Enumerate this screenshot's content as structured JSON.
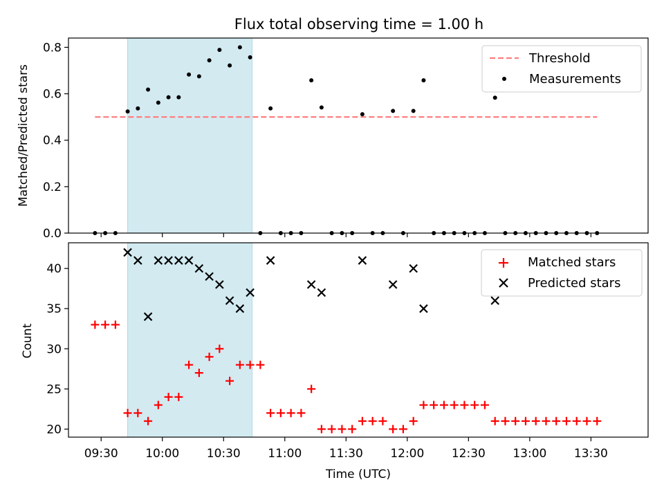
{
  "title": "Flux total observing time = 1.00 h",
  "chart_data": [
    {
      "type": "scatter",
      "panel": "top",
      "ylabel": "Matched/Predicted stars",
      "ylim": [
        0,
        0.84
      ],
      "yticks": [
        0.0,
        0.2,
        0.4,
        0.6,
        0.8
      ],
      "ytick_labels": [
        "0.0",
        "0.2",
        "0.4",
        "0.6",
        "0.8"
      ],
      "xlim": [
        "09:14",
        "13:58"
      ],
      "highlight_span": [
        "09:43",
        "10:44"
      ],
      "highlight_color": "#d3eaf1",
      "legend_position": "upper right",
      "series": [
        {
          "name": "Threshold",
          "kind": "dashed-line",
          "color": "#ff7f7f",
          "x": [
            "09:27",
            "13:33"
          ],
          "y": [
            0.5,
            0.5
          ]
        },
        {
          "name": "Measurements",
          "kind": "points",
          "color": "#000000",
          "x": [
            "09:27",
            "09:32",
            "09:37",
            "09:43",
            "09:48",
            "09:53",
            "09:58",
            "10:03",
            "10:08",
            "10:13",
            "10:18",
            "10:23",
            "10:28",
            "10:33",
            "10:38",
            "10:43",
            "10:48",
            "10:53",
            "10:58",
            "11:03",
            "11:08",
            "11:13",
            "11:18",
            "11:23",
            "11:28",
            "11:33",
            "11:38",
            "11:43",
            "11:48",
            "11:53",
            "11:58",
            "12:03",
            "12:08",
            "12:13",
            "12:18",
            "12:23",
            "12:28",
            "12:33",
            "12:38",
            "12:43",
            "12:48",
            "12:53",
            "12:58",
            "13:03",
            "13:08",
            "13:13",
            "13:18",
            "13:23",
            "13:28",
            "13:33"
          ],
          "y": [
            0,
            0,
            0,
            0.524,
            0.537,
            0.618,
            0.562,
            0.585,
            0.585,
            0.683,
            0.675,
            0.744,
            0.789,
            0.722,
            0.8,
            0.757,
            0,
            0.537,
            0,
            0,
            0,
            0.658,
            0.541,
            0,
            0,
            0,
            0.512,
            0,
            0,
            0.526,
            0,
            0.526,
            0.658,
            0,
            0,
            0,
            0,
            0,
            0,
            0.583,
            0,
            0,
            0,
            0,
            0,
            0,
            0,
            0,
            0,
            0
          ]
        }
      ]
    },
    {
      "type": "scatter",
      "panel": "bottom",
      "xlabel": "Time (UTC)",
      "ylabel": "Count",
      "ylim": [
        19,
        43.2
      ],
      "yticks": [
        20,
        25,
        30,
        35,
        40
      ],
      "ytick_labels": [
        "20",
        "25",
        "30",
        "35",
        "40"
      ],
      "xlim": [
        "09:14",
        "13:58"
      ],
      "xticks": [
        "09:30",
        "10:00",
        "10:30",
        "11:00",
        "11:30",
        "12:00",
        "12:30",
        "13:00",
        "13:30"
      ],
      "xtick_labels": [
        "09:30",
        "10:00",
        "10:30",
        "11:00",
        "11:30",
        "12:00",
        "12:30",
        "13:00",
        "13:30"
      ],
      "highlight_span": [
        "09:43",
        "10:44"
      ],
      "highlight_color": "#d3eaf1",
      "legend_position": "upper right",
      "series": [
        {
          "name": "Matched stars",
          "marker": "plus",
          "color": "#ff0000",
          "x": [
            "09:27",
            "09:32",
            "09:37",
            "09:43",
            "09:48",
            "09:53",
            "09:58",
            "10:03",
            "10:08",
            "10:13",
            "10:18",
            "10:23",
            "10:28",
            "10:33",
            "10:38",
            "10:43",
            "10:48",
            "10:53",
            "10:58",
            "11:03",
            "11:08",
            "11:13",
            "11:18",
            "11:23",
            "11:28",
            "11:33",
            "11:38",
            "11:43",
            "11:48",
            "11:53",
            "11:58",
            "12:03",
            "12:08",
            "12:13",
            "12:18",
            "12:23",
            "12:28",
            "12:33",
            "12:38",
            "12:43",
            "12:48",
            "12:53",
            "12:58",
            "13:03",
            "13:08",
            "13:13",
            "13:18",
            "13:23",
            "13:28",
            "13:33"
          ],
          "y": [
            33,
            33,
            33,
            22,
            22,
            21,
            23,
            24,
            24,
            28,
            27,
            29,
            30,
            26,
            28,
            28,
            28,
            22,
            22,
            22,
            22,
            25,
            20,
            20,
            20,
            20,
            21,
            21,
            21,
            20,
            20,
            21,
            23,
            23,
            23,
            23,
            23,
            23,
            23,
            21,
            21,
            21,
            21,
            21,
            21,
            21,
            21,
            21,
            21,
            21
          ]
        },
        {
          "name": "Predicted stars",
          "marker": "x",
          "color": "#000000",
          "x": [
            "09:43",
            "09:48",
            "09:53",
            "09:58",
            "10:03",
            "10:08",
            "10:13",
            "10:18",
            "10:23",
            "10:28",
            "10:33",
            "10:38",
            "10:43",
            "10:53",
            "11:13",
            "11:18",
            "11:38",
            "11:53",
            "12:03",
            "12:08",
            "12:43"
          ],
          "y": [
            42,
            41,
            34,
            41,
            41,
            41,
            41,
            40,
            39,
            38,
            36,
            35,
            37,
            41,
            38,
            37,
            41,
            38,
            40,
            35,
            36
          ]
        }
      ]
    }
  ]
}
